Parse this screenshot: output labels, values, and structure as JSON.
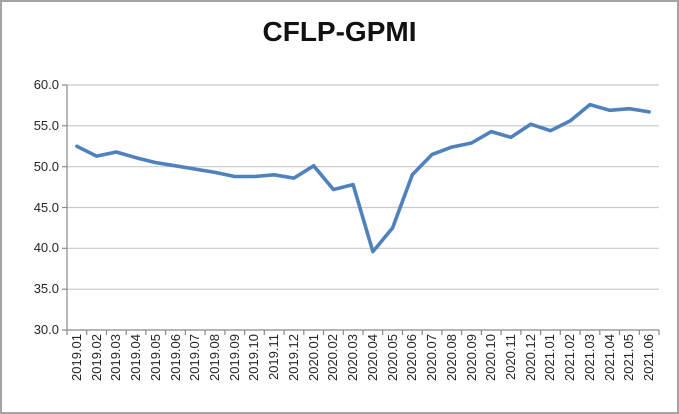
{
  "chart_data": {
    "type": "line",
    "title": "CFLP-GPMI",
    "categories": [
      "2019.01",
      "2019.02",
      "2019.03",
      "2019.04",
      "2019.05",
      "2019.06",
      "2019.07",
      "2019.08",
      "2019.09",
      "2019.10",
      "2019.11",
      "2019.12",
      "2020.01",
      "2020.02",
      "2020.03",
      "2020.04",
      "2020.05",
      "2020.06",
      "2020.07",
      "2020.08",
      "2020.09",
      "2020.10",
      "2020.11",
      "2020.12",
      "2021.01",
      "2021.02",
      "2021.03",
      "2021.04",
      "2021.05",
      "2021.06"
    ],
    "series": [
      {
        "name": "CFLP-GPMI",
        "values": [
          52.5,
          51.3,
          51.8,
          51.1,
          50.5,
          50.1,
          49.7,
          49.3,
          48.8,
          48.8,
          49.0,
          48.6,
          50.1,
          47.2,
          47.8,
          39.6,
          42.5,
          49.0,
          51.5,
          52.4,
          52.9,
          54.3,
          53.6,
          55.2,
          54.4,
          55.6,
          57.6,
          56.9,
          57.1,
          56.7
        ]
      }
    ],
    "xlabel": "",
    "ylabel": "",
    "ylim": [
      30,
      60
    ],
    "ytick_step": 5,
    "yticks": [
      "60.0",
      "55.0",
      "50.0",
      "45.0",
      "40.0",
      "35.0",
      "30.0"
    ],
    "grid": "horizontal",
    "legend": "none",
    "line_color": "#4F81BD",
    "grid_color": "#c9c9c9",
    "axis_color": "#898989",
    "text_color": "#262626"
  }
}
